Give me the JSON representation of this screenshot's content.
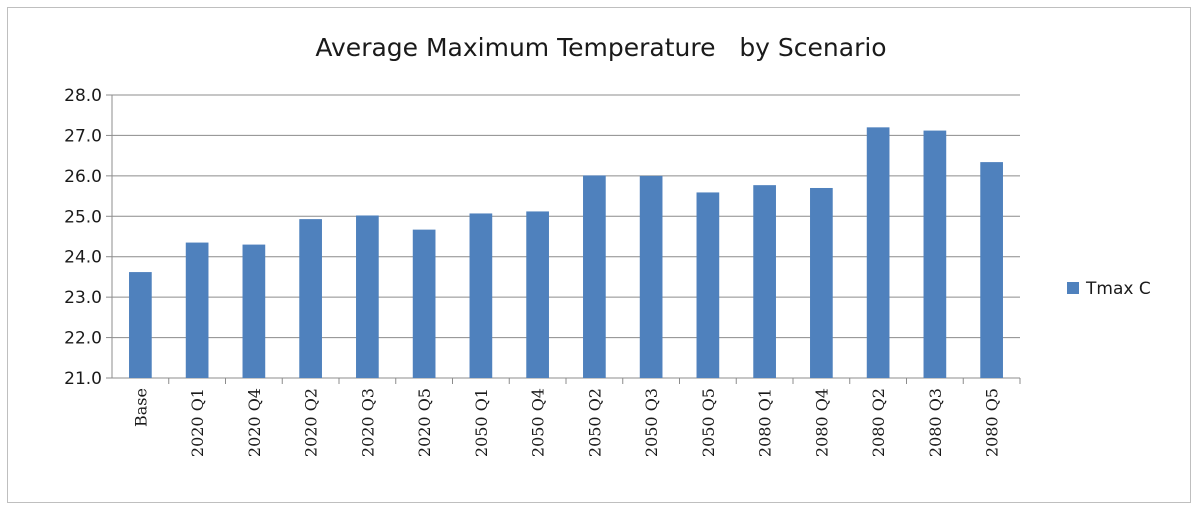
{
  "chart_data": {
    "type": "bar",
    "title": "Average Maximum Temperature   by Scenario",
    "categories": [
      "Base",
      "2020 Q1",
      "2020 Q4",
      "2020 Q2",
      "2020 Q3",
      "2020 Q5",
      "2050 Q1",
      "2050 Q4",
      "2050 Q2",
      "2050 Q3",
      "2050 Q5",
      "2080 Q1",
      "2080 Q4",
      "2080 Q2",
      "2080 Q3",
      "2080 Q5"
    ],
    "series": [
      {
        "name": "Tmax C",
        "values": [
          23.62,
          24.35,
          24.3,
          24.93,
          25.02,
          24.67,
          25.07,
          25.12,
          26.01,
          26.0,
          25.59,
          25.77,
          25.7,
          27.2,
          27.12,
          26.34
        ]
      }
    ],
    "ylim": [
      21.0,
      28.0
    ],
    "yticks": [
      "21.0",
      "22.0",
      "23.0",
      "24.0",
      "25.0",
      "26.0",
      "27.0",
      "28.0"
    ],
    "grid": true,
    "legend_position": "right",
    "bar_color": "#4f81bd"
  }
}
